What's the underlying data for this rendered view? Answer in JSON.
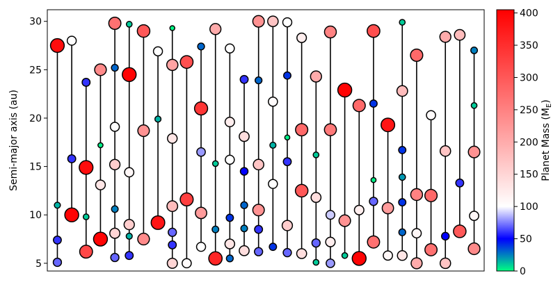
{
  "chart_data": {
    "type": "scatter",
    "title": "",
    "ylabel": "Semi-major axis (au)",
    "ylim": [
      4.2,
      31.2
    ],
    "yticks": [
      5,
      10,
      15,
      20,
      25,
      30
    ],
    "xticks_visible": false,
    "grid": false,
    "colorbar": {
      "label": "Planet Mass (M",
      "label_sub": "E",
      "label_close": ")",
      "range": [
        0,
        405
      ],
      "ticks": [
        0,
        50,
        100,
        150,
        200,
        250,
        300,
        350,
        400
      ],
      "colors": [
        "#00ff80",
        "#0000ff",
        "#ffffff",
        "#ff0000"
      ]
    },
    "systems": [
      {
        "x": 1,
        "planets": [
          {
            "a": 27.5,
            "m": 390
          },
          {
            "a": 11.0,
            "m": 15
          },
          {
            "a": 7.4,
            "m": 60
          },
          {
            "a": 5.1,
            "m": 70
          }
        ]
      },
      {
        "x": 2,
        "planets": [
          {
            "a": 28.0,
            "m": 100
          },
          {
            "a": 15.8,
            "m": 60
          },
          {
            "a": 10.0,
            "m": 400
          }
        ]
      },
      {
        "x": 3,
        "planets": [
          {
            "a": 23.7,
            "m": 60
          },
          {
            "a": 14.9,
            "m": 390
          },
          {
            "a": 9.8,
            "m": 10
          },
          {
            "a": 6.2,
            "m": 320
          }
        ]
      },
      {
        "x": 4,
        "planets": [
          {
            "a": 25.0,
            "m": 240
          },
          {
            "a": 17.2,
            "m": 3
          },
          {
            "a": 13.1,
            "m": 130
          },
          {
            "a": 7.5,
            "m": 400
          }
        ]
      },
      {
        "x": 5,
        "planets": [
          {
            "a": 29.8,
            "m": 270
          },
          {
            "a": 25.2,
            "m": 30
          },
          {
            "a": 19.1,
            "m": 100
          },
          {
            "a": 15.2,
            "m": 160
          },
          {
            "a": 10.6,
            "m": 25
          },
          {
            "a": 8.1,
            "m": 150
          },
          {
            "a": 5.6,
            "m": 70
          }
        ]
      },
      {
        "x": 6,
        "planets": [
          {
            "a": 29.7,
            "m": 10
          },
          {
            "a": 24.5,
            "m": 400
          },
          {
            "a": 14.4,
            "m": 110
          },
          {
            "a": 9.0,
            "m": 160
          },
          {
            "a": 7.8,
            "m": 15
          },
          {
            "a": 5.8,
            "m": 60
          }
        ]
      },
      {
        "x": 7,
        "planets": [
          {
            "a": 29.0,
            "m": 300
          },
          {
            "a": 18.7,
            "m": 230
          },
          {
            "a": 7.5,
            "m": 240
          }
        ]
      },
      {
        "x": 8,
        "planets": [
          {
            "a": 26.9,
            "m": 100
          },
          {
            "a": 19.9,
            "m": 15
          },
          {
            "a": 9.2,
            "m": 380
          }
        ]
      },
      {
        "x": 9,
        "planets": [
          {
            "a": 29.3,
            "m": 2
          },
          {
            "a": 25.5,
            "m": 210
          },
          {
            "a": 17.9,
            "m": 130
          },
          {
            "a": 10.9,
            "m": 180
          },
          {
            "a": 8.2,
            "m": 70
          },
          {
            "a": 6.9,
            "m": 60
          },
          {
            "a": 5.0,
            "m": 150
          }
        ]
      },
      {
        "x": 10,
        "planets": [
          {
            "a": 25.8,
            "m": 310
          },
          {
            "a": 11.6,
            "m": 330
          },
          {
            "a": 5.0,
            "m": 105
          }
        ]
      },
      {
        "x": 11,
        "planets": [
          {
            "a": 27.4,
            "m": 30
          },
          {
            "a": 21.0,
            "m": 340
          },
          {
            "a": 16.5,
            "m": 80
          },
          {
            "a": 10.2,
            "m": 220
          },
          {
            "a": 6.7,
            "m": 100
          }
        ]
      },
      {
        "x": 12,
        "planets": [
          {
            "a": 29.2,
            "m": 200
          },
          {
            "a": 15.3,
            "m": 10
          },
          {
            "a": 8.5,
            "m": 25
          },
          {
            "a": 5.5,
            "m": 360
          }
        ]
      },
      {
        "x": 13,
        "planets": [
          {
            "a": 27.2,
            "m": 100
          },
          {
            "a": 19.6,
            "m": 120
          },
          {
            "a": 15.7,
            "m": 100
          },
          {
            "a": 9.7,
            "m": 40
          },
          {
            "a": 7.0,
            "m": 130
          },
          {
            "a": 5.5,
            "m": 30
          }
        ]
      },
      {
        "x": 14,
        "planets": [
          {
            "a": 24.0,
            "m": 60
          },
          {
            "a": 18.1,
            "m": 140
          },
          {
            "a": 14.5,
            "m": 50
          },
          {
            "a": 11.0,
            "m": 30
          },
          {
            "a": 8.6,
            "m": 25
          },
          {
            "a": 6.3,
            "m": 140
          }
        ]
      },
      {
        "x": 15,
        "planets": [
          {
            "a": 30.0,
            "m": 230
          },
          {
            "a": 23.9,
            "m": 30
          },
          {
            "a": 15.2,
            "m": 170
          },
          {
            "a": 10.5,
            "m": 230
          },
          {
            "a": 8.5,
            "m": 60
          },
          {
            "a": 6.2,
            "m": 70
          }
        ]
      },
      {
        "x": 16,
        "planets": [
          {
            "a": 30.0,
            "m": 170
          },
          {
            "a": 21.7,
            "m": 105
          },
          {
            "a": 17.2,
            "m": 15
          },
          {
            "a": 13.2,
            "m": 100
          },
          {
            "a": 6.7,
            "m": 40
          }
        ]
      },
      {
        "x": 17,
        "planets": [
          {
            "a": 29.9,
            "m": 100
          },
          {
            "a": 24.4,
            "m": 40
          },
          {
            "a": 18.0,
            "m": 3
          },
          {
            "a": 15.5,
            "m": 60
          },
          {
            "a": 8.9,
            "m": 160
          },
          {
            "a": 6.1,
            "m": 70
          }
        ]
      },
      {
        "x": 18,
        "planets": [
          {
            "a": 28.3,
            "m": 120
          },
          {
            "a": 18.8,
            "m": 280
          },
          {
            "a": 12.5,
            "m": 300
          },
          {
            "a": 6.0,
            "m": 140
          }
        ]
      },
      {
        "x": 19,
        "planets": [
          {
            "a": 24.3,
            "m": 200
          },
          {
            "a": 16.2,
            "m": 10
          },
          {
            "a": 11.8,
            "m": 140
          },
          {
            "a": 7.1,
            "m": 70
          },
          {
            "a": 5.1,
            "m": 10
          }
        ]
      },
      {
        "x": 20,
        "planets": [
          {
            "a": 28.9,
            "m": 250
          },
          {
            "a": 18.8,
            "m": 260
          },
          {
            "a": 10.0,
            "m": 90
          },
          {
            "a": 7.2,
            "m": 120
          },
          {
            "a": 5.0,
            "m": 80
          }
        ]
      },
      {
        "x": 21,
        "planets": [
          {
            "a": 22.9,
            "m": 400
          },
          {
            "a": 9.4,
            "m": 230
          },
          {
            "a": 5.8,
            "m": 10
          }
        ]
      },
      {
        "x": 22,
        "planets": [
          {
            "a": 21.3,
            "m": 280
          },
          {
            "a": 10.5,
            "m": 120
          },
          {
            "a": 5.5,
            "m": 400
          }
        ]
      },
      {
        "x": 23,
        "planets": [
          {
            "a": 29.0,
            "m": 310
          },
          {
            "a": 21.5,
            "m": 40
          },
          {
            "a": 13.6,
            "m": 3
          },
          {
            "a": 11.4,
            "m": 70
          },
          {
            "a": 7.2,
            "m": 270
          }
        ]
      },
      {
        "x": 24,
        "planets": [
          {
            "a": 19.3,
            "m": 380
          },
          {
            "a": 10.7,
            "m": 220
          },
          {
            "a": 5.8,
            "m": 110
          }
        ]
      },
      {
        "x": 25,
        "planets": [
          {
            "a": 29.9,
            "m": 10
          },
          {
            "a": 22.8,
            "m": 180
          },
          {
            "a": 16.7,
            "m": 40
          },
          {
            "a": 13.9,
            "m": 20
          },
          {
            "a": 11.3,
            "m": 40
          },
          {
            "a": 8.2,
            "m": 30
          },
          {
            "a": 5.8,
            "m": 130
          }
        ]
      },
      {
        "x": 26,
        "planets": [
          {
            "a": 26.5,
            "m": 280
          },
          {
            "a": 12.1,
            "m": 250
          },
          {
            "a": 8.1,
            "m": 110
          },
          {
            "a": 5.0,
            "m": 200
          }
        ]
      },
      {
        "x": 27,
        "planets": [
          {
            "a": 20.3,
            "m": 105
          },
          {
            "a": 12.0,
            "m": 280
          },
          {
            "a": 6.4,
            "m": 270
          }
        ]
      },
      {
        "x": 28,
        "planets": [
          {
            "a": 28.4,
            "m": 200
          },
          {
            "a": 16.6,
            "m": 170
          },
          {
            "a": 7.8,
            "m": 50
          },
          {
            "a": 5.0,
            "m": 170
          }
        ]
      },
      {
        "x": 29,
        "planets": [
          {
            "a": 28.6,
            "m": 180
          },
          {
            "a": 13.3,
            "m": 60
          },
          {
            "a": 8.3,
            "m": 300
          }
        ]
      },
      {
        "x": 30,
        "planets": [
          {
            "a": 27.0,
            "m": 25
          },
          {
            "a": 21.3,
            "m": 10
          },
          {
            "a": 16.5,
            "m": 230
          },
          {
            "a": 9.9,
            "m": 110
          },
          {
            "a": 6.5,
            "m": 240
          }
        ]
      }
    ]
  }
}
